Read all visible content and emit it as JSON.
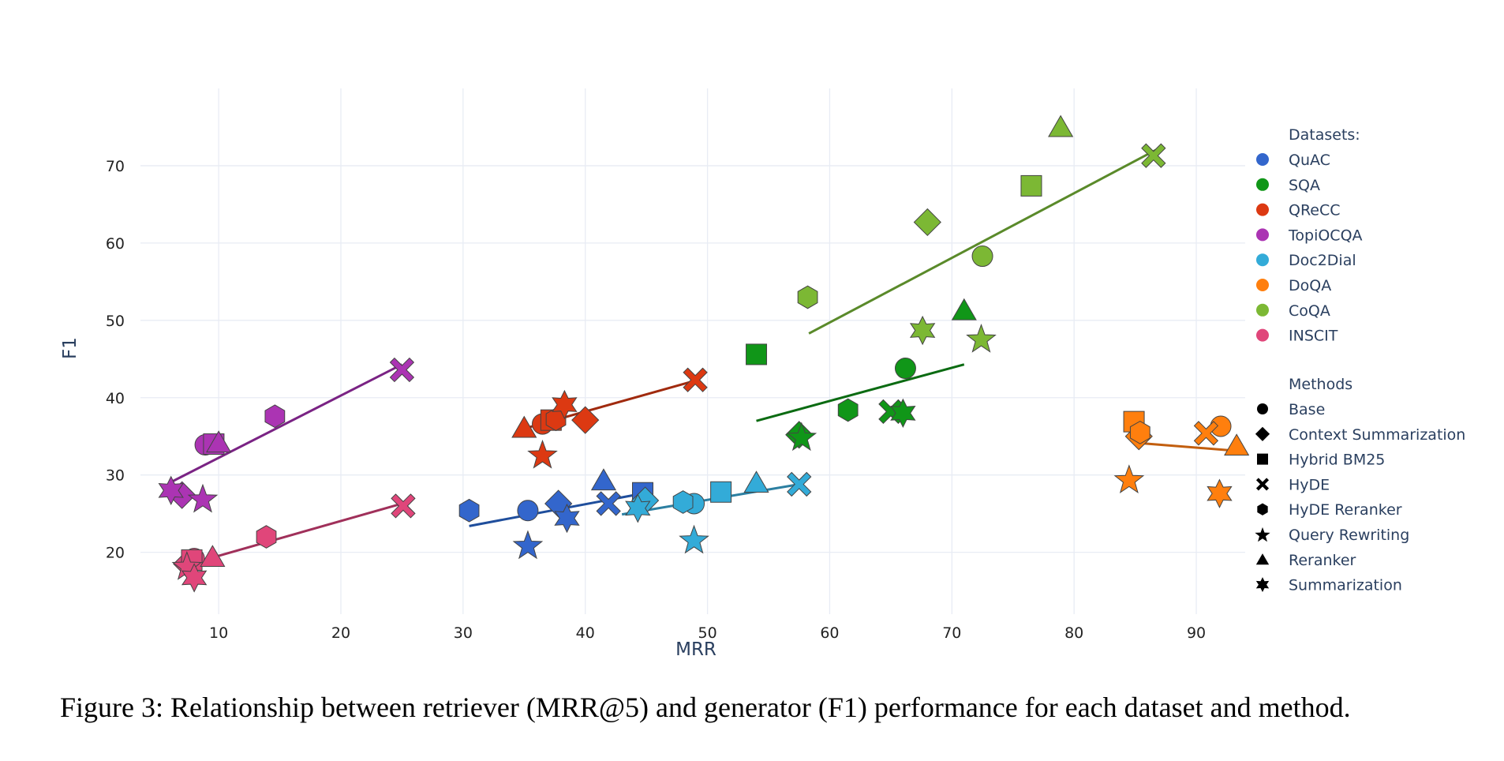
{
  "caption": "Figure 3: Relationship between retriever (MRR@5) and generator (F1) performance for each dataset and method.",
  "chart_data": {
    "type": "scatter",
    "xlabel": "MRR",
    "ylabel": "F1",
    "xlim": [
      3.6,
      94
    ],
    "ylim": [
      12,
      80
    ],
    "xticks": [
      10,
      20,
      30,
      40,
      50,
      60,
      70,
      80,
      90
    ],
    "yticks": [
      20,
      30,
      40,
      50,
      60,
      70
    ],
    "grid": true,
    "legend_placement": "right",
    "legend_dataset_title": "Datasets:",
    "legend_method_title": "Methods",
    "marker_edge_color": "#444444",
    "datasets": [
      {
        "name": "QuAC",
        "color": "#3366CC",
        "trend_color": "#1F4E9C",
        "trend": [
          [
            30.5,
            23.4
          ],
          [
            45,
            27.7
          ]
        ]
      },
      {
        "name": "SQA",
        "color": "#109618",
        "trend_color": "#0B6B12",
        "trend": [
          [
            54,
            37
          ],
          [
            71,
            44.3
          ]
        ]
      },
      {
        "name": "QReCC",
        "color": "#DC3912",
        "trend_color": "#A02A0E",
        "trend": [
          [
            35,
            36
          ],
          [
            49,
            42.2
          ]
        ]
      },
      {
        "name": "TopiOCQA",
        "color": "#AB34B3",
        "trend_color": "#7A2384",
        "trend": [
          [
            6,
            29
          ],
          [
            25,
            44.3
          ]
        ]
      },
      {
        "name": "Doc2Dial",
        "color": "#33ABD8",
        "trend_color": "#2C7FA1",
        "trend": [
          [
            43,
            24.9
          ],
          [
            57.5,
            28.8
          ]
        ]
      },
      {
        "name": "DoQA",
        "color": "#FF7F0E",
        "trend_color": "#C25E0E",
        "trend": [
          [
            84.8,
            34.2
          ],
          [
            93.5,
            33.1
          ]
        ]
      },
      {
        "name": "CoQA",
        "color": "#7CB834",
        "trend_color": "#5A8A2A",
        "trend": [
          [
            58.3,
            48.3
          ],
          [
            87,
            72.3
          ]
        ]
      },
      {
        "name": "INSCIT",
        "color": "#E0467A",
        "trend_color": "#A0305A",
        "trend": [
          [
            7,
            18.2
          ],
          [
            25,
            26.3
          ]
        ]
      }
    ],
    "methods": [
      {
        "name": "Base",
        "symbol": "circle"
      },
      {
        "name": "Context Summarization",
        "symbol": "diamond"
      },
      {
        "name": "Hybrid BM25",
        "symbol": "square"
      },
      {
        "name": "HyDE",
        "symbol": "x"
      },
      {
        "name": "HyDE Reranker",
        "symbol": "hexagon"
      },
      {
        "name": "Query Rewriting",
        "symbol": "star"
      },
      {
        "name": "Reranker",
        "symbol": "triangle-up"
      },
      {
        "name": "Summarization",
        "symbol": "star-six"
      }
    ],
    "points": [
      {
        "dataset": "QuAC",
        "method": "Base",
        "x": 35.3,
        "y": 25.4
      },
      {
        "dataset": "QuAC",
        "method": "Context Summarization",
        "x": 37.8,
        "y": 26.3
      },
      {
        "dataset": "QuAC",
        "method": "Hybrid BM25",
        "x": 44.7,
        "y": 27.7
      },
      {
        "dataset": "QuAC",
        "method": "HyDE",
        "x": 41.9,
        "y": 26.3
      },
      {
        "dataset": "QuAC",
        "method": "HyDE Reranker",
        "x": 30.5,
        "y": 25.4
      },
      {
        "dataset": "QuAC",
        "method": "Query Rewriting",
        "x": 35.3,
        "y": 20.9
      },
      {
        "dataset": "QuAC",
        "method": "Reranker",
        "x": 41.5,
        "y": 29.3
      },
      {
        "dataset": "QuAC",
        "method": "Summarization",
        "x": 38.5,
        "y": 24.4
      },
      {
        "dataset": "SQA",
        "method": "Base",
        "x": 66.2,
        "y": 43.8
      },
      {
        "dataset": "SQA",
        "method": "Context Summarization",
        "x": 57.5,
        "y": 35.2
      },
      {
        "dataset": "SQA",
        "method": "Hybrid BM25",
        "x": 54,
        "y": 45.6
      },
      {
        "dataset": "SQA",
        "method": "HyDE",
        "x": 65,
        "y": 38.2
      },
      {
        "dataset": "SQA",
        "method": "HyDE Reranker",
        "x": 61.5,
        "y": 38.4
      },
      {
        "dataset": "SQA",
        "method": "Query Rewriting",
        "x": 57.7,
        "y": 34.9
      },
      {
        "dataset": "SQA",
        "method": "Reranker",
        "x": 71,
        "y": 51.3
      },
      {
        "dataset": "SQA",
        "method": "Summarization",
        "x": 66,
        "y": 38
      },
      {
        "dataset": "QReCC",
        "method": "Base",
        "x": 36.5,
        "y": 36.6
      },
      {
        "dataset": "QReCC",
        "method": "Context Summarization",
        "x": 40,
        "y": 37.1
      },
      {
        "dataset": "QReCC",
        "method": "Hybrid BM25",
        "x": 37.2,
        "y": 37.1
      },
      {
        "dataset": "QReCC",
        "method": "HyDE",
        "x": 49,
        "y": 42.3
      },
      {
        "dataset": "QReCC",
        "method": "HyDE Reranker",
        "x": 37.6,
        "y": 37.2
      },
      {
        "dataset": "QReCC",
        "method": "Query Rewriting",
        "x": 36.5,
        "y": 32.6
      },
      {
        "dataset": "QReCC",
        "method": "Reranker",
        "x": 35,
        "y": 36.1
      },
      {
        "dataset": "QReCC",
        "method": "Summarization",
        "x": 38.3,
        "y": 39.1
      },
      {
        "dataset": "TopiOCQA",
        "method": "Base",
        "x": 8.9,
        "y": 33.9
      },
      {
        "dataset": "TopiOCQA",
        "method": "Context Summarization",
        "x": 7,
        "y": 27.4
      },
      {
        "dataset": "TopiOCQA",
        "method": "Hybrid BM25",
        "x": 9.6,
        "y": 34
      },
      {
        "dataset": "TopiOCQA",
        "method": "HyDE",
        "x": 25,
        "y": 43.6
      },
      {
        "dataset": "TopiOCQA",
        "method": "HyDE Reranker",
        "x": 14.6,
        "y": 37.6
      },
      {
        "dataset": "TopiOCQA",
        "method": "Query Rewriting",
        "x": 8.7,
        "y": 26.9
      },
      {
        "dataset": "TopiOCQA",
        "method": "Reranker",
        "x": 10,
        "y": 34.2
      },
      {
        "dataset": "TopiOCQA",
        "method": "Summarization",
        "x": 6.1,
        "y": 28
      },
      {
        "dataset": "Doc2Dial",
        "method": "Base",
        "x": 48.9,
        "y": 26.3
      },
      {
        "dataset": "Doc2Dial",
        "method": "Context Summarization",
        "x": 44.9,
        "y": 26.7
      },
      {
        "dataset": "Doc2Dial",
        "method": "Hybrid BM25",
        "x": 51.1,
        "y": 27.8
      },
      {
        "dataset": "Doc2Dial",
        "method": "HyDE",
        "x": 57.5,
        "y": 28.8
      },
      {
        "dataset": "Doc2Dial",
        "method": "HyDE Reranker",
        "x": 48,
        "y": 26.5
      },
      {
        "dataset": "Doc2Dial",
        "method": "Query Rewriting",
        "x": 48.9,
        "y": 21.6
      },
      {
        "dataset": "Doc2Dial",
        "method": "Reranker",
        "x": 54,
        "y": 29
      },
      {
        "dataset": "Doc2Dial",
        "method": "Summarization",
        "x": 44.3,
        "y": 25.7
      },
      {
        "dataset": "DoQA",
        "method": "Base",
        "x": 92,
        "y": 36.3
      },
      {
        "dataset": "DoQA",
        "method": "Context Summarization",
        "x": 85.3,
        "y": 35
      },
      {
        "dataset": "DoQA",
        "method": "Hybrid BM25",
        "x": 84.9,
        "y": 36.9
      },
      {
        "dataset": "DoQA",
        "method": "HyDE",
        "x": 90.8,
        "y": 35.4
      },
      {
        "dataset": "DoQA",
        "method": "HyDE Reranker",
        "x": 85.4,
        "y": 35.5
      },
      {
        "dataset": "DoQA",
        "method": "Query Rewriting",
        "x": 84.5,
        "y": 29.4
      },
      {
        "dataset": "DoQA",
        "method": "Reranker",
        "x": 93.3,
        "y": 33.8
      },
      {
        "dataset": "DoQA",
        "method": "Summarization",
        "x": 91.9,
        "y": 27.6
      },
      {
        "dataset": "CoQA",
        "method": "Base",
        "x": 72.5,
        "y": 58.3
      },
      {
        "dataset": "CoQA",
        "method": "Context Summarization",
        "x": 68,
        "y": 62.7
      },
      {
        "dataset": "CoQA",
        "method": "Hybrid BM25",
        "x": 76.5,
        "y": 67.4
      },
      {
        "dataset": "CoQA",
        "method": "HyDE",
        "x": 86.5,
        "y": 71.3
      },
      {
        "dataset": "CoQA",
        "method": "HyDE Reranker",
        "x": 58.2,
        "y": 53
      },
      {
        "dataset": "CoQA",
        "method": "Query Rewriting",
        "x": 72.4,
        "y": 47.6
      },
      {
        "dataset": "CoQA",
        "method": "Reranker",
        "x": 78.9,
        "y": 75
      },
      {
        "dataset": "CoQA",
        "method": "Summarization",
        "x": 67.6,
        "y": 48.7
      },
      {
        "dataset": "INSCIT",
        "method": "Base",
        "x": 8,
        "y": 19.2
      },
      {
        "dataset": "INSCIT",
        "method": "Context Summarization",
        "x": 7.4,
        "y": 18.5
      },
      {
        "dataset": "INSCIT",
        "method": "Hybrid BM25",
        "x": 7.8,
        "y": 19
      },
      {
        "dataset": "INSCIT",
        "method": "HyDE",
        "x": 25.1,
        "y": 26
      },
      {
        "dataset": "INSCIT",
        "method": "HyDE Reranker",
        "x": 13.9,
        "y": 22
      },
      {
        "dataset": "INSCIT",
        "method": "Query Rewriting",
        "x": 7.4,
        "y": 18.2
      },
      {
        "dataset": "INSCIT",
        "method": "Reranker",
        "x": 9.5,
        "y": 19.4
      },
      {
        "dataset": "INSCIT",
        "method": "Summarization",
        "x": 8,
        "y": 16.7
      }
    ]
  }
}
